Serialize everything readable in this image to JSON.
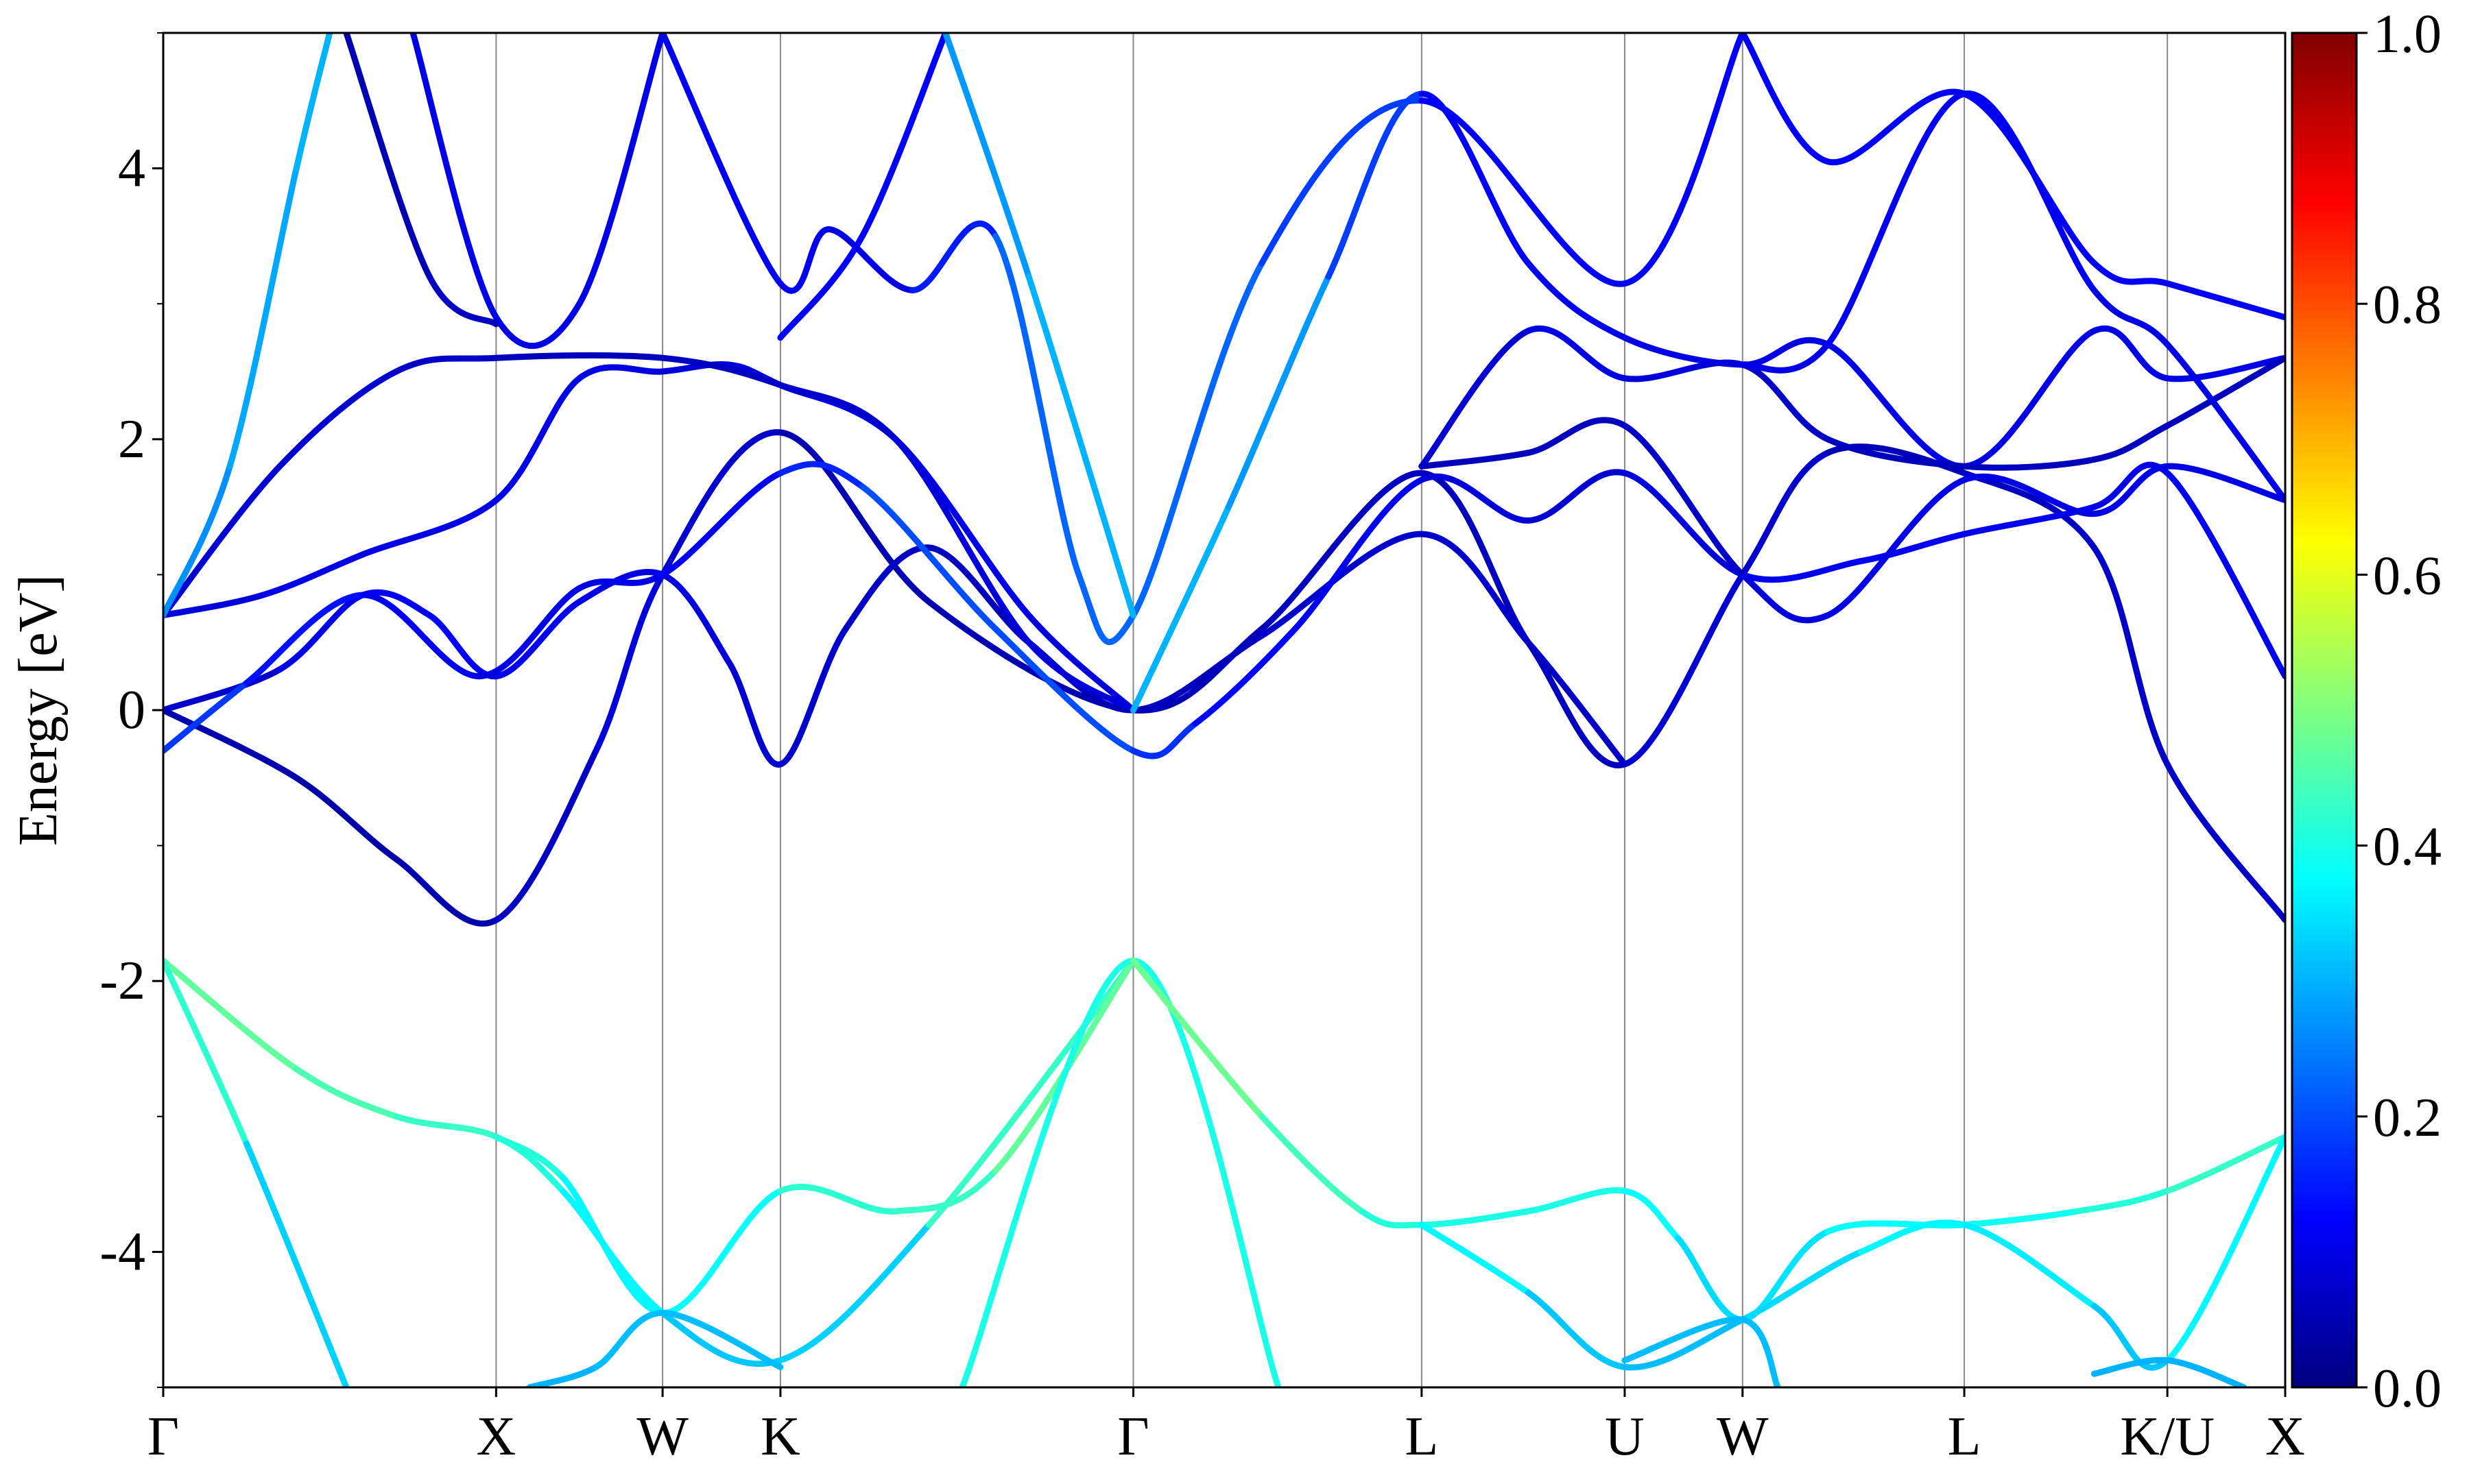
{
  "chart_data": {
    "type": "line",
    "title": "",
    "xlabel": "",
    "ylabel": "Energy [eV]",
    "ylim": [
      -5,
      5
    ],
    "yticks": [
      -4,
      -2,
      0,
      2,
      4
    ],
    "ytick_labels": [
      "-4",
      "-2",
      "0",
      "2",
      "4"
    ],
    "yminor_ticks": [
      -5,
      -3,
      -1,
      1,
      3,
      5
    ],
    "kpath": [
      "Γ",
      "X",
      "W",
      "K",
      "Γ",
      "L",
      "U",
      "W",
      "L",
      "K/U",
      "X"
    ],
    "kpath_positions": [
      0,
      1.0,
      1.5,
      1.854,
      2.914,
      3.78,
      4.39,
      4.744,
      5.41,
      6.02,
      6.374
    ],
    "xlim": [
      0,
      6.374
    ],
    "colorbar": {
      "label": "",
      "range": [
        0,
        1
      ],
      "ticks": [
        0,
        0.2,
        0.4,
        0.6,
        0.8,
        1.0
      ],
      "tick_labels": [
        "0.0",
        "0.2",
        "0.4",
        "0.6",
        "0.8",
        "1.0"
      ],
      "colormap": "jet"
    },
    "series": [
      {
        "points": [
          [
            0,
            -1.85
          ],
          [
            0.4,
            -2.65
          ],
          [
            0.7,
            -3.0
          ],
          [
            1.0,
            -3.15
          ],
          [
            1.2,
            -3.55
          ],
          [
            1.5,
            -4.45
          ],
          [
            1.854,
            -4.8
          ],
          [
            2.3,
            -3.8
          ],
          [
            2.914,
            -1.85
          ]
        ],
        "weight": [
          0.48,
          0.46,
          0.44,
          0.42,
          0.4,
          0.34,
          0.3,
          0.36,
          0.5
        ]
      },
      {
        "points": [
          [
            0,
            -1.85
          ],
          [
            0.25,
            -3.2
          ],
          [
            0.55,
            -5.0
          ]
        ],
        "weight": [
          0.48,
          0.36,
          0.3
        ]
      },
      {
        "points": [
          [
            1.0,
            -3.15
          ],
          [
            1.2,
            -3.45
          ],
          [
            1.5,
            -4.45
          ],
          [
            1.854,
            -3.55
          ],
          [
            2.2,
            -3.7
          ],
          [
            2.5,
            -3.4
          ],
          [
            2.914,
            -1.85
          ]
        ],
        "weight": [
          0.42,
          0.4,
          0.34,
          0.42,
          0.42,
          0.44,
          0.5
        ]
      },
      {
        "points": [
          [
            1.1,
            -5.0
          ],
          [
            1.3,
            -4.85
          ],
          [
            1.5,
            -4.45
          ],
          [
            1.854,
            -4.85
          ]
        ],
        "weight": [
          0.3,
          0.3,
          0.32,
          0.3
        ]
      },
      {
        "points": [
          [
            2.4,
            -5.0
          ],
          [
            2.914,
            -1.85
          ],
          [
            3.35,
            -5.0
          ]
        ],
        "weight": [
          0.3,
          0.5,
          0.3
        ]
      },
      {
        "points": [
          [
            2.914,
            -1.85
          ],
          [
            3.3,
            -3.0
          ],
          [
            3.6,
            -3.7
          ],
          [
            3.78,
            -3.8
          ],
          [
            4.1,
            -3.7
          ],
          [
            4.39,
            -3.55
          ],
          [
            4.55,
            -3.9
          ],
          [
            4.744,
            -4.5
          ],
          [
            5.0,
            -3.85
          ],
          [
            5.41,
            -3.8
          ],
          [
            5.75,
            -3.7
          ],
          [
            6.02,
            -3.55
          ],
          [
            6.374,
            -3.15
          ]
        ],
        "weight": [
          0.5,
          0.46,
          0.42,
          0.4,
          0.4,
          0.4,
          0.36,
          0.32,
          0.38,
          0.38,
          0.4,
          0.42,
          0.44
        ]
      },
      {
        "points": [
          [
            3.78,
            -3.8
          ],
          [
            4.1,
            -4.3
          ],
          [
            4.39,
            -4.85
          ],
          [
            4.744,
            -4.5
          ],
          [
            5.1,
            -4.0
          ],
          [
            5.41,
            -3.8
          ],
          [
            5.8,
            -4.4
          ],
          [
            6.02,
            -4.8
          ],
          [
            6.374,
            -3.15
          ]
        ],
        "weight": [
          0.4,
          0.34,
          0.3,
          0.32,
          0.36,
          0.38,
          0.34,
          0.3,
          0.44
        ]
      },
      {
        "points": [
          [
            4.39,
            -4.8
          ],
          [
            4.744,
            -4.5
          ],
          [
            4.85,
            -5.0
          ]
        ],
        "weight": [
          0.3,
          0.32,
          0.3
        ]
      },
      {
        "points": [
          [
            5.8,
            -4.9
          ],
          [
            6.02,
            -4.8
          ],
          [
            6.25,
            -5.0
          ]
        ],
        "weight": [
          0.3,
          0.3,
          0.3
        ]
      },
      {
        "points": [
          [
            0,
            0.0
          ],
          [
            0.4,
            -0.5
          ],
          [
            0.7,
            -1.1
          ],
          [
            1.0,
            -1.55
          ],
          [
            1.3,
            -0.3
          ],
          [
            1.5,
            1.0
          ],
          [
            1.854,
            2.05
          ],
          [
            2.3,
            0.8
          ],
          [
            2.914,
            0.0
          ],
          [
            3.3,
            0.6
          ],
          [
            3.78,
            1.75
          ],
          [
            4.1,
            0.5
          ],
          [
            4.39,
            -0.4
          ],
          [
            4.744,
            1.0
          ],
          [
            5.0,
            1.9
          ],
          [
            5.41,
            1.75
          ],
          [
            5.8,
            1.2
          ],
          [
            6.02,
            -0.4
          ],
          [
            6.374,
            -1.55
          ]
        ],
        "weight": [
          0.05,
          0.04,
          0.04,
          0.05,
          0.08,
          0.1,
          0.05,
          0.05,
          0.05,
          0.06,
          0.06,
          0.06,
          0.06,
          0.1,
          0.05,
          0.06,
          0.07,
          0.07,
          0.07
        ]
      },
      {
        "points": [
          [
            0,
            0.0
          ],
          [
            0.35,
            0.3
          ],
          [
            0.6,
            0.85
          ],
          [
            0.8,
            0.7
          ],
          [
            1.0,
            0.25
          ],
          [
            1.25,
            0.8
          ],
          [
            1.5,
            1.0
          ],
          [
            1.7,
            0.35
          ],
          [
            1.854,
            -0.4
          ],
          [
            2.05,
            0.6
          ],
          [
            2.3,
            1.2
          ],
          [
            2.6,
            0.5
          ],
          [
            2.914,
            0.0
          ],
          [
            3.3,
            0.55
          ],
          [
            3.78,
            1.3
          ],
          [
            4.1,
            0.5
          ],
          [
            4.39,
            -0.4
          ]
        ],
        "weight": [
          0.05,
          0.1,
          0.1,
          0.12,
          0.12,
          0.1,
          0.1,
          0.08,
          0.08,
          0.07,
          0.06,
          0.06,
          0.05,
          0.07,
          0.08,
          0.07,
          0.06
        ]
      },
      {
        "points": [
          [
            0,
            0.7
          ],
          [
            0.3,
            0.85
          ],
          [
            0.6,
            1.15
          ],
          [
            1.0,
            1.55
          ],
          [
            1.25,
            2.45
          ],
          [
            1.5,
            2.5
          ],
          [
            1.7,
            2.55
          ],
          [
            1.854,
            2.4
          ],
          [
            2.2,
            2.0
          ],
          [
            2.6,
            0.7
          ],
          [
            2.914,
            0.0
          ]
        ],
        "weight": [
          0.08,
          0.1,
          0.1,
          0.1,
          0.1,
          0.09,
          0.09,
          0.09,
          0.1,
          0.1,
          0.08
        ]
      },
      {
        "points": [
          [
            0,
            0.7
          ],
          [
            0.35,
            1.8
          ],
          [
            0.7,
            2.5
          ],
          [
            1.0,
            2.6
          ],
          [
            1.5,
            2.6
          ],
          [
            1.854,
            2.4
          ],
          [
            2.2,
            2.0
          ],
          [
            2.6,
            0.5
          ],
          [
            2.914,
            0.0
          ]
        ],
        "weight": [
          0.08,
          0.08,
          0.08,
          0.06,
          0.06,
          0.07,
          0.08,
          0.1,
          0.08
        ]
      },
      {
        "points": [
          [
            0,
            -0.3
          ],
          [
            0.25,
            0.2
          ],
          [
            0.6,
            0.85
          ],
          [
            0.95,
            0.25
          ],
          [
            1.25,
            0.9
          ],
          [
            1.5,
            1.0
          ],
          [
            1.854,
            1.75
          ],
          [
            2.1,
            1.65
          ],
          [
            2.5,
            0.6
          ],
          [
            2.914,
            -0.3
          ],
          [
            3.1,
            -0.1
          ],
          [
            3.4,
            0.6
          ],
          [
            3.78,
            1.7
          ],
          [
            4.1,
            1.4
          ],
          [
            4.39,
            1.75
          ],
          [
            4.744,
            1.0
          ],
          [
            5.1,
            1.1
          ],
          [
            5.41,
            1.3
          ],
          [
            5.8,
            1.5
          ],
          [
            6.02,
            1.75
          ],
          [
            6.374,
            0.25
          ]
        ],
        "weight": [
          0.2,
          0.16,
          0.12,
          0.1,
          0.1,
          0.1,
          0.12,
          0.2,
          0.2,
          0.2,
          0.14,
          0.12,
          0.1,
          0.08,
          0.08,
          0.1,
          0.12,
          0.12,
          0.1,
          0.1,
          0.12
        ]
      },
      {
        "points": [
          [
            0,
            0.7
          ],
          [
            0.2,
            1.8
          ],
          [
            0.4,
            4.0
          ],
          [
            0.5,
            5.0
          ]
        ],
        "weight": [
          0.25,
          0.28,
          0.3,
          0.3
        ]
      },
      {
        "points": [
          [
            0.75,
            5.0
          ],
          [
            1.0,
            2.9
          ],
          [
            1.25,
            3.0
          ],
          [
            1.5,
            5.0
          ]
        ],
        "weight": [
          0.1,
          0.1,
          0.1,
          0.1
        ]
      },
      {
        "points": [
          [
            0.55,
            5.0
          ],
          [
            0.8,
            3.2
          ],
          [
            1.0,
            2.85
          ]
        ],
        "weight": [
          0.05,
          0.05,
          0.08
        ]
      },
      {
        "points": [
          [
            1.5,
            5.0
          ],
          [
            1.854,
            3.15
          ],
          [
            2.0,
            3.55
          ],
          [
            2.25,
            3.1
          ],
          [
            2.5,
            3.5
          ],
          [
            2.75,
            1.0
          ],
          [
            2.914,
            0.7
          ],
          [
            3.3,
            3.3
          ],
          [
            3.78,
            4.5
          ],
          [
            4.39,
            3.15
          ],
          [
            4.744,
            5.0
          ]
        ],
        "weight": [
          0.1,
          0.12,
          0.1,
          0.1,
          0.2,
          0.25,
          0.2,
          0.25,
          0.12,
          0.12,
          0.12
        ]
      },
      {
        "points": [
          [
            1.854,
            2.75
          ],
          [
            2.1,
            3.5
          ],
          [
            2.35,
            5.0
          ]
        ],
        "weight": [
          0.12,
          0.12,
          0.12
        ]
      },
      {
        "points": [
          [
            2.35,
            5.0
          ],
          [
            2.6,
            3.2
          ],
          [
            2.914,
            0.7
          ]
        ],
        "weight": [
          0.25,
          0.3,
          0.3
        ]
      },
      {
        "points": [
          [
            2.914,
            0.0
          ],
          [
            3.2,
            1.5
          ],
          [
            3.5,
            3.2
          ],
          [
            3.78,
            4.55
          ],
          [
            4.1,
            3.3
          ],
          [
            4.39,
            2.75
          ],
          [
            4.744,
            2.55
          ],
          [
            5.0,
            2.7
          ],
          [
            5.41,
            1.8
          ],
          [
            5.8,
            2.8
          ],
          [
            6.02,
            2.45
          ],
          [
            6.374,
            2.6
          ]
        ],
        "weight": [
          0.3,
          0.3,
          0.25,
          0.12,
          0.12,
          0.1,
          0.1,
          0.1,
          0.1,
          0.1,
          0.1,
          0.1
        ]
      },
      {
        "points": [
          [
            3.78,
            1.8
          ],
          [
            4.1,
            2.8
          ],
          [
            4.39,
            2.45
          ],
          [
            4.744,
            2.55
          ],
          [
            5.0,
            2.0
          ],
          [
            5.41,
            1.8
          ],
          [
            5.8,
            1.85
          ],
          [
            6.02,
            2.1
          ],
          [
            6.374,
            2.6
          ]
        ],
        "weight": [
          0.06,
          0.1,
          0.1,
          0.08,
          0.06,
          0.06,
          0.06,
          0.06,
          0.06
        ]
      },
      {
        "points": [
          [
            3.78,
            1.8
          ],
          [
            4.1,
            1.9
          ],
          [
            4.39,
            2.1
          ],
          [
            4.744,
            1.0
          ],
          [
            5.0,
            0.7
          ],
          [
            5.41,
            1.7
          ],
          [
            5.8,
            1.45
          ],
          [
            6.02,
            1.8
          ],
          [
            6.374,
            1.55
          ]
        ],
        "weight": [
          0.06,
          0.06,
          0.06,
          0.08,
          0.1,
          0.1,
          0.1,
          0.1,
          0.1
        ]
      },
      {
        "points": [
          [
            4.744,
            5.0
          ],
          [
            5.0,
            4.05
          ],
          [
            5.41,
            4.55
          ],
          [
            5.8,
            3.3
          ],
          [
            6.02,
            3.15
          ],
          [
            6.374,
            2.9
          ]
        ],
        "weight": [
          0.12,
          0.12,
          0.12,
          0.12,
          0.12,
          0.12
        ]
      },
      {
        "points": [
          [
            4.744,
            2.55
          ],
          [
            5.0,
            2.7
          ],
          [
            5.41,
            4.55
          ],
          [
            5.8,
            3.1
          ],
          [
            6.02,
            2.7
          ],
          [
            6.374,
            1.55
          ]
        ],
        "weight": [
          0.1,
          0.1,
          0.12,
          0.1,
          0.1,
          0.1
        ]
      }
    ]
  }
}
